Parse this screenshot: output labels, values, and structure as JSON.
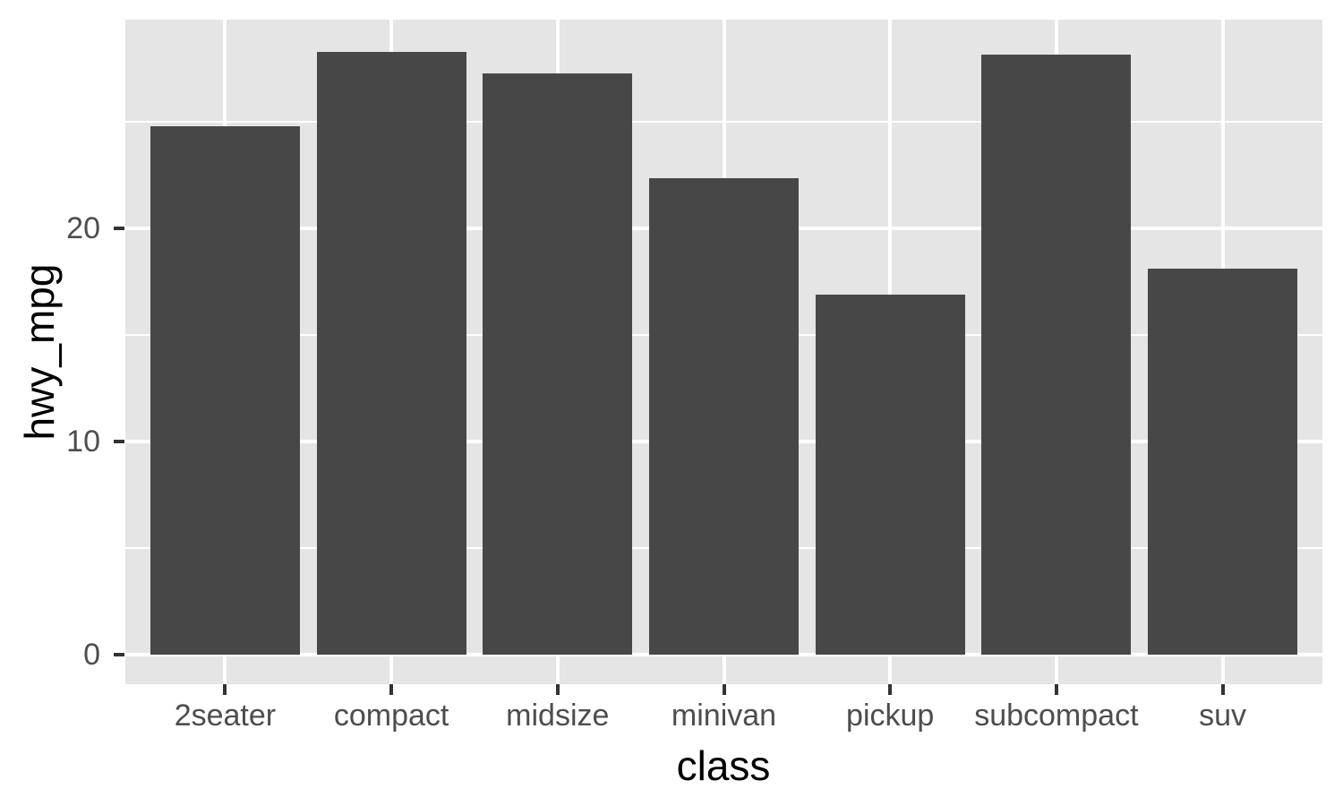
{
  "chart_data": {
    "type": "bar",
    "title": "",
    "xlabel": "class",
    "ylabel": "hwy_mpg",
    "categories": [
      "2seater",
      "compact",
      "midsize",
      "minivan",
      "pickup",
      "subcompact",
      "suv"
    ],
    "values": [
      24.8,
      28.3,
      27.29,
      22.36,
      16.88,
      28.14,
      18.13
    ],
    "y_major_ticks": [
      0,
      10,
      20
    ],
    "y_minor_ticks": [
      5,
      15,
      25
    ],
    "ylim": [
      -1.4,
      29.8
    ],
    "grid": "major-and-minor-white-on-gray",
    "legend_position": "none",
    "bar_width_fraction": 0.9,
    "colors": {
      "bar_fill": "#474747",
      "panel_background": "#E5E5E5",
      "gridline": "#FFFFFF",
      "tick_mark": "#333333",
      "tick_label": "#4D4D4D",
      "axis_title": "#000000",
      "page_background": "#FFFFFF"
    }
  }
}
